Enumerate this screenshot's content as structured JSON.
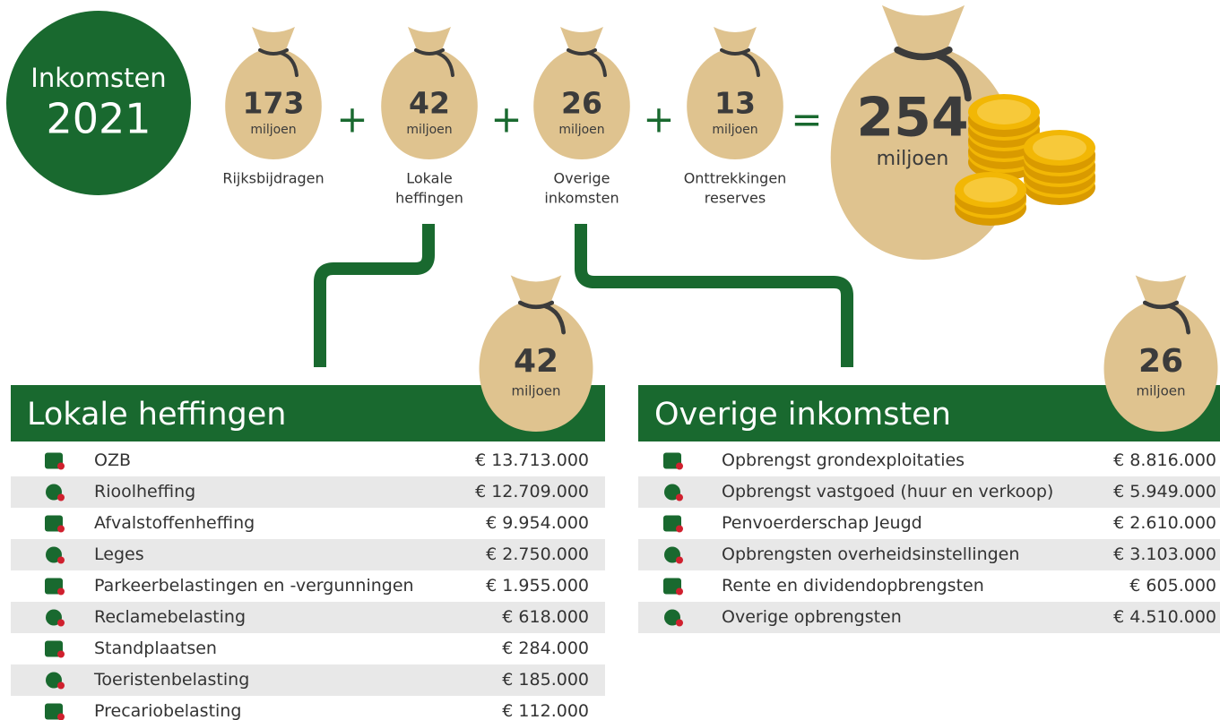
{
  "badge": {
    "title": "Inkomsten",
    "year": "2021"
  },
  "bags": [
    {
      "amount": "173",
      "unit": "miljoen",
      "label_lines": [
        "Rijksbijdragen"
      ]
    },
    {
      "amount": "42",
      "unit": "miljoen",
      "label_lines": [
        "Lokale",
        "heffingen"
      ]
    },
    {
      "amount": "26",
      "unit": "miljoen",
      "label_lines": [
        "Overige",
        "inkomsten"
      ]
    },
    {
      "amount": "13",
      "unit": "miljoen",
      "label_lines": [
        "Onttrekkingen",
        "reserves"
      ]
    }
  ],
  "operators": [
    "+",
    "+",
    "+",
    "="
  ],
  "total": {
    "amount": "254",
    "unit": "miljoen"
  },
  "sections": [
    {
      "title": "Lokale heffingen",
      "bag": {
        "amount": "42",
        "unit": "miljoen"
      },
      "rows": [
        {
          "label": "OZB",
          "amount": "€ 13.713.000"
        },
        {
          "label": "Rioolheffing",
          "amount": "€ 12.709.000"
        },
        {
          "label": "Afvalstoffenheffing",
          "amount": "€ 9.954.000"
        },
        {
          "label": "Leges",
          "amount": "€ 2.750.000"
        },
        {
          "label": "Parkeerbelastingen en -vergunningen",
          "amount": "€ 1.955.000"
        },
        {
          "label": "Reclamebelasting",
          "amount": "€ 618.000"
        },
        {
          "label": "Standplaatsen",
          "amount": "€ 284.000"
        },
        {
          "label": "Toeristenbelasting",
          "amount": "€ 185.000"
        },
        {
          "label": "Precariobelasting",
          "amount": "€ 112.000"
        }
      ]
    },
    {
      "title": "Overige inkomsten",
      "bag": {
        "amount": "26",
        "unit": "miljoen"
      },
      "rows": [
        {
          "label": "Opbrengst grondexploitaties",
          "amount": "€ 8.816.000"
        },
        {
          "label": "Opbrengst vastgoed (huur en verkoop)",
          "amount": "€ 5.949.000"
        },
        {
          "label": "Penvoerderschap Jeugd",
          "amount": "€ 2.610.000"
        },
        {
          "label": "Opbrengsten overheidsinstellingen",
          "amount": "€ 3.103.000"
        },
        {
          "label": "Rente en dividendopbrengsten",
          "amount": "€ 605.000"
        },
        {
          "label": "Overige opbrengsten",
          "amount": "€ 4.510.000"
        }
      ]
    }
  ]
}
